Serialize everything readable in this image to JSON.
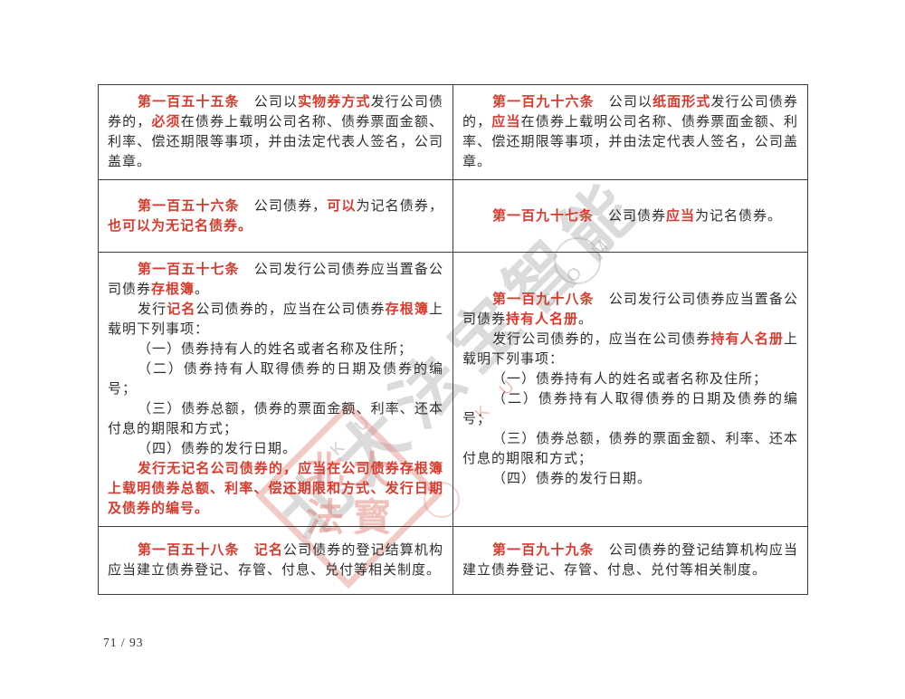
{
  "page": {
    "number_label": "71 / 93"
  },
  "colors": {
    "accent_red": "#d63c2e",
    "body_text": "#2e2e2e",
    "border": "#3c3c3c",
    "watermark_gray": "#8a8a8a",
    "stamp_pink": "#e2837a"
  },
  "watermark": {
    "diagonal_text": "北大法宝智能",
    "latin_strip_1": "· C O M",
    "latin_strip_2": "K U",
    "latin_strip_pink": "K U",
    "stamp_chars": [
      "北",
      "大",
      "法",
      "寳"
    ]
  },
  "table": {
    "rows": [
      {
        "left": {
          "paragraphs": [
            {
              "runs": [
                {
                  "t": "第一百五十五条",
                  "red": true,
                  "name": "article-number"
                },
                {
                  "t": "　公司以",
                  "red": false
                },
                {
                  "t": "实物券方式",
                  "red": true
                },
                {
                  "t": "发行公司债券的，",
                  "red": false
                },
                {
                  "t": "必须",
                  "red": true
                },
                {
                  "t": "在债券上载明公司名称、债券票面金额、利率、偿还期限等事项，并由法定代表人签名，公司盖章。",
                  "red": false
                }
              ]
            }
          ]
        },
        "right": {
          "paragraphs": [
            {
              "runs": [
                {
                  "t": "第一百九十六条",
                  "red": true,
                  "name": "article-number"
                },
                {
                  "t": "　公司以",
                  "red": false
                },
                {
                  "t": "纸面形式",
                  "red": true
                },
                {
                  "t": "发行公司债券的，",
                  "red": false
                },
                {
                  "t": "应当",
                  "red": true
                },
                {
                  "t": "在债券上载明公司名称、债券票面金额、利率、偿还期限等事项，并由法定代表人签名，公司盖章。",
                  "red": false
                }
              ]
            }
          ]
        }
      },
      {
        "left": {
          "paragraphs": [
            {
              "runs": [
                {
                  "t": "第一百五十六条",
                  "red": true,
                  "name": "article-number"
                },
                {
                  "t": "　公司债券，",
                  "red": false
                },
                {
                  "t": "可以",
                  "red": true
                },
                {
                  "t": "为记名债券，",
                  "red": false
                },
                {
                  "t": "也可以为无记名债券。",
                  "red": true
                }
              ]
            }
          ]
        },
        "right": {
          "paragraphs": [
            {
              "runs": [
                {
                  "t": "第一百九十七条",
                  "red": true,
                  "name": "article-number"
                },
                {
                  "t": "　公司债券",
                  "red": false
                },
                {
                  "t": "应当",
                  "red": true
                },
                {
                  "t": "为记名债券。",
                  "red": false
                }
              ]
            }
          ]
        }
      },
      {
        "left": {
          "paragraphs": [
            {
              "runs": [
                {
                  "t": "第一百五十七条",
                  "red": true,
                  "name": "article-number"
                },
                {
                  "t": "　公司发行公司债券应当置备公司债券",
                  "red": false
                },
                {
                  "t": "存根簿",
                  "red": true
                },
                {
                  "t": "。",
                  "red": false
                }
              ]
            },
            {
              "runs": [
                {
                  "t": "发行",
                  "red": false
                },
                {
                  "t": "记名",
                  "red": true
                },
                {
                  "t": "公司债券的，应当在公司债券",
                  "red": false
                },
                {
                  "t": "存根簿",
                  "red": true
                },
                {
                  "t": "上载明下列事项：",
                  "red": false
                }
              ]
            },
            {
              "runs": [
                {
                  "t": "（一）债券持有人的姓名或者名称及住所；",
                  "red": false
                }
              ]
            },
            {
              "runs": [
                {
                  "t": "（二）债券持有人取得债券的日期及债券的编号；",
                  "red": false
                }
              ]
            },
            {
              "runs": [
                {
                  "t": "（三）债券总额，债券的票面金额、利率、还本付息的期限和方式；",
                  "red": false
                }
              ]
            },
            {
              "runs": [
                {
                  "t": "（四）债券的发行日期。",
                  "red": false
                }
              ]
            },
            {
              "runs": [
                {
                  "t": "发行无记名公司债券的，应当在公司债券存根簿上载明债券总额、利率、偿还期限和方式、发行日期及债券的编号。",
                  "red": true
                }
              ]
            }
          ]
        },
        "right": {
          "paragraphs": [
            {
              "runs": [
                {
                  "t": "第一百九十八条",
                  "red": true,
                  "name": "article-number"
                },
                {
                  "t": "　公司发行公司债券应当置备公司债券",
                  "red": false
                },
                {
                  "t": "持有人名册",
                  "red": true
                },
                {
                  "t": "。",
                  "red": false
                }
              ]
            },
            {
              "runs": [
                {
                  "t": "发行公司债券的，应当在公司债券",
                  "red": false
                },
                {
                  "t": "持有人名册",
                  "red": true
                },
                {
                  "t": "上载明下列事项：",
                  "red": false
                }
              ]
            },
            {
              "runs": [
                {
                  "t": "（一）债券持有人的姓名或者名称及住所；",
                  "red": false
                }
              ]
            },
            {
              "runs": [
                {
                  "t": "（二）债券持有人取得债券的日期及债券的编号；",
                  "red": false
                }
              ]
            },
            {
              "runs": [
                {
                  "t": "（三）债券总额，债券的票面金额、利率、还本付息的期限和方式；",
                  "red": false
                }
              ]
            },
            {
              "runs": [
                {
                  "t": "（四）债券的发行日期。",
                  "red": false
                }
              ]
            }
          ]
        }
      },
      {
        "left": {
          "paragraphs": [
            {
              "runs": [
                {
                  "t": "第一百五十八条",
                  "red": true,
                  "name": "article-number"
                },
                {
                  "t": "　",
                  "red": false
                },
                {
                  "t": "记名",
                  "red": true
                },
                {
                  "t": "公司债券的登记结算机构应当建立债券登记、存管、付息、兑付等相关制度。",
                  "red": false
                }
              ]
            }
          ]
        },
        "right": {
          "paragraphs": [
            {
              "runs": [
                {
                  "t": "第一百九十九条",
                  "red": true,
                  "name": "article-number"
                },
                {
                  "t": "　公司债券的登记结算机构应当建立债券登记、存管、付息、兑付等相关制度。",
                  "red": false
                }
              ]
            }
          ]
        }
      }
    ]
  }
}
